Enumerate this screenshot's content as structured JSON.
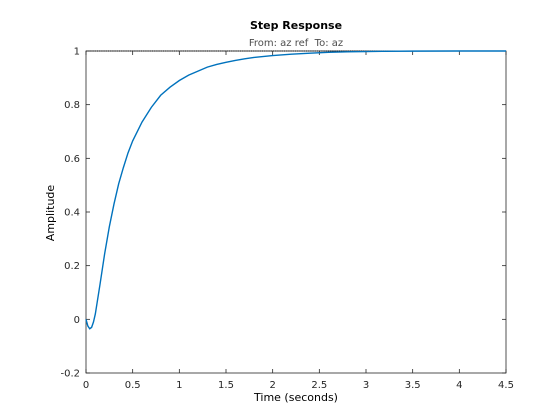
{
  "chart_data": {
    "type": "line",
    "title": "Step Response",
    "subtitle": "From: az ref  To: az",
    "xlabel": "Time (seconds)",
    "ylabel": "Amplitude",
    "xlim": [
      0,
      4.5
    ],
    "ylim": [
      -0.2,
      1
    ],
    "xticks": [
      "0",
      "0.5",
      "1",
      "1.5",
      "2",
      "2.5",
      "3",
      "3.5",
      "4",
      "4.5"
    ],
    "yticks": [
      "-0.2",
      "0",
      "0.2",
      "0.4",
      "0.6",
      "0.8",
      "1"
    ],
    "xtick_values": [
      0,
      0.5,
      1,
      1.5,
      2,
      2.5,
      3,
      3.5,
      4,
      4.5
    ],
    "ytick_values": [
      -0.2,
      0,
      0.2,
      0.4,
      0.6,
      0.8,
      1
    ],
    "grid": false,
    "reference_line": 1,
    "series": [
      {
        "color": "#0072bd",
        "x": [
          0,
          0.02,
          0.04,
          0.06,
          0.08,
          0.1,
          0.15,
          0.2,
          0.25,
          0.3,
          0.35,
          0.4,
          0.45,
          0.5,
          0.6,
          0.7,
          0.8,
          0.9,
          1.0,
          1.1,
          1.2,
          1.3,
          1.4,
          1.5,
          1.6,
          1.7,
          1.8,
          2.0,
          2.2,
          2.4,
          2.6,
          2.8,
          3.0,
          3.2,
          3.5,
          4.0,
          4.5
        ],
        "y": [
          0,
          -0.025,
          -0.035,
          -0.03,
          -0.01,
          0.02,
          0.13,
          0.245,
          0.345,
          0.43,
          0.505,
          0.565,
          0.62,
          0.665,
          0.735,
          0.79,
          0.835,
          0.865,
          0.89,
          0.91,
          0.925,
          0.94,
          0.95,
          0.958,
          0.965,
          0.971,
          0.976,
          0.983,
          0.988,
          0.992,
          0.995,
          0.997,
          0.998,
          0.999,
          0.9995,
          1.0,
          1.0
        ]
      }
    ],
    "colors": {
      "line": "#0072bd",
      "axes": "#262626",
      "reference": "#000000"
    }
  }
}
